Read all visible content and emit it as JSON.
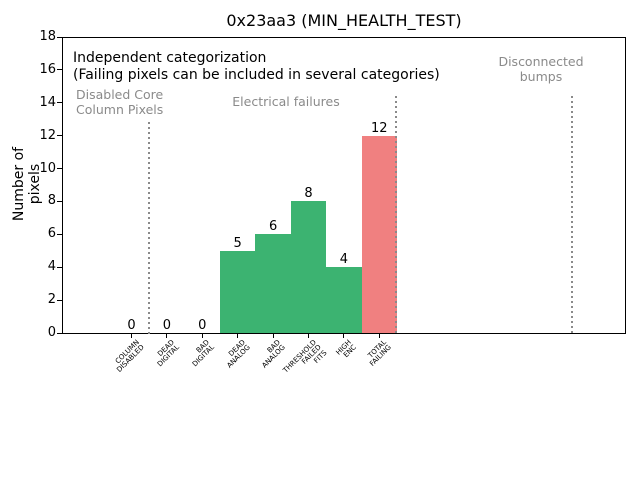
{
  "chart_data": {
    "type": "bar",
    "title": "0x23aa3 (MIN_HEALTH_TEST)",
    "ylabel": "Number of pixels",
    "xlabel": "",
    "ylim": [
      0,
      18
    ],
    "yticks": [
      0,
      2,
      4,
      6,
      8,
      10,
      12,
      14,
      16,
      18
    ],
    "grid": false,
    "legend": "none",
    "categories": [
      "COLUMN\nDISABLED",
      "DEAD\nDIGITAL",
      "BAD\nDIGITAL",
      "DEAD\nANALOG",
      "BAD\nANALOG",
      "THRESHOLD\nFAILED\nFITS",
      "HIGH\nENC",
      "TOTAL\nFAILING"
    ],
    "values": [
      0,
      0,
      0,
      5,
      6,
      8,
      4,
      12
    ],
    "value_labels_shown": true,
    "bar_colors": [
      "#3CB371",
      "#3CB371",
      "#3CB371",
      "#3CB371",
      "#3CB371",
      "#3CB371",
      "#3CB371",
      "#F08080"
    ],
    "annotations": {
      "line1": "Independent categorization",
      "line2": "(Failing pixels can be included in several categories)",
      "sections": [
        {
          "label": "Disabled Core\nColumn Pixels"
        },
        {
          "label": "Electrical failures"
        },
        {
          "label": "Disconnected\nbumps"
        }
      ],
      "section_separator_style": "dotted"
    },
    "colors": {
      "bar_green": "#3CB371",
      "bar_red": "#F08080",
      "section_text": "#8a8a8a",
      "separator": "#8a8a8a",
      "axis": "#000000",
      "background": "#ffffff"
    }
  }
}
